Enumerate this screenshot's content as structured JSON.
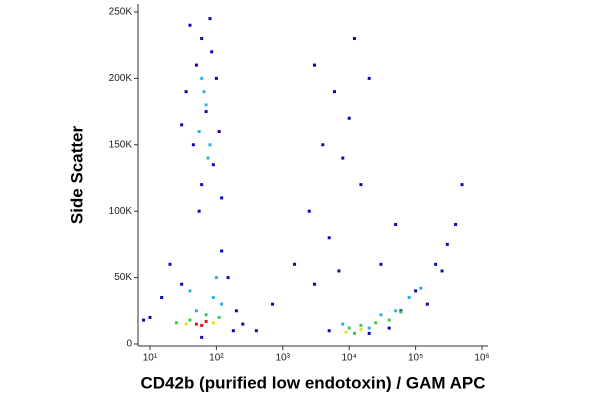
{
  "chart_data": {
    "type": "scatter",
    "x_label": "CD42b (purified low endotoxin) / GAM APC",
    "y_label": "Side Scatter",
    "xscale": "log",
    "xlim": [
      6.6,
      1230000
    ],
    "ylim": [
      -1500,
      256000
    ],
    "xticks": [
      {
        "value": 10,
        "label": "10¹"
      },
      {
        "value": 100,
        "label": "10²"
      },
      {
        "value": 1000,
        "label": "10³"
      },
      {
        "value": 10000,
        "label": "10⁴"
      },
      {
        "value": 100000,
        "label": "10⁵"
      },
      {
        "value": 1000000,
        "label": "10⁶"
      }
    ],
    "yticks": [
      0,
      {
        "value": 50000,
        "label": "50K"
      },
      {
        "value": 100000,
        "label": "100K"
      },
      {
        "value": 150000,
        "label": "150K"
      },
      {
        "value": 200000,
        "label": "200K"
      },
      {
        "value": 250000,
        "label": "250K"
      }
    ],
    "series": [
      {
        "color": "#0a0ab4",
        "x": [
          40,
          60,
          80,
          50,
          100,
          35,
          70,
          110,
          45,
          90,
          60,
          120,
          30,
          85,
          55,
          20,
          150,
          15,
          200,
          10,
          250,
          30,
          120,
          8,
          180,
          60,
          3000,
          6000,
          10000,
          4000,
          8000,
          15000,
          2500,
          20000,
          5000,
          12000,
          50000,
          1500,
          700,
          400,
          3000,
          7000,
          30000,
          100000,
          200000,
          300000,
          400000,
          150000,
          60000,
          500000,
          250000,
          20000,
          40000,
          5000
        ],
        "values": [
          240000,
          230000,
          245000,
          210000,
          200000,
          190000,
          175000,
          160000,
          150000,
          135000,
          120000,
          110000,
          165000,
          220000,
          100000,
          60000,
          50000,
          35000,
          25000,
          20000,
          15000,
          45000,
          70000,
          18000,
          10000,
          5000,
          210000,
          190000,
          170000,
          150000,
          140000,
          120000,
          100000,
          200000,
          80000,
          230000,
          90000,
          60000,
          30000,
          10000,
          45000,
          55000,
          60000,
          40000,
          60000,
          75000,
          90000,
          30000,
          25000,
          120000,
          55000,
          8000,
          12000,
          10000
        ]
      },
      {
        "color": "#28b4e0",
        "x": [
          60,
          70,
          55,
          80,
          65,
          75,
          50,
          90,
          120,
          40,
          100,
          30000,
          50000,
          80000,
          120000,
          8000,
          20000
        ],
        "values": [
          200000,
          180000,
          160000,
          150000,
          190000,
          140000,
          25000,
          35000,
          30000,
          40000,
          50000,
          22000,
          25000,
          35000,
          42000,
          15000,
          12000
        ]
      },
      {
        "color": "#3ccc50",
        "x": [
          40,
          70,
          110,
          25,
          10000,
          15000,
          25000,
          40000,
          60000,
          12000
        ],
        "values": [
          18000,
          22000,
          20000,
          16000,
          12000,
          14000,
          16000,
          18000,
          24000,
          8000
        ]
      },
      {
        "color": "#f0dc1e",
        "x": [
          35,
          90,
          15000,
          9000
        ],
        "values": [
          15000,
          16000,
          11000,
          9000
        ]
      },
      {
        "color": "#e81010",
        "x": [
          50,
          70,
          60
        ],
        "values": [
          15000,
          17000,
          14000
        ]
      }
    ]
  }
}
